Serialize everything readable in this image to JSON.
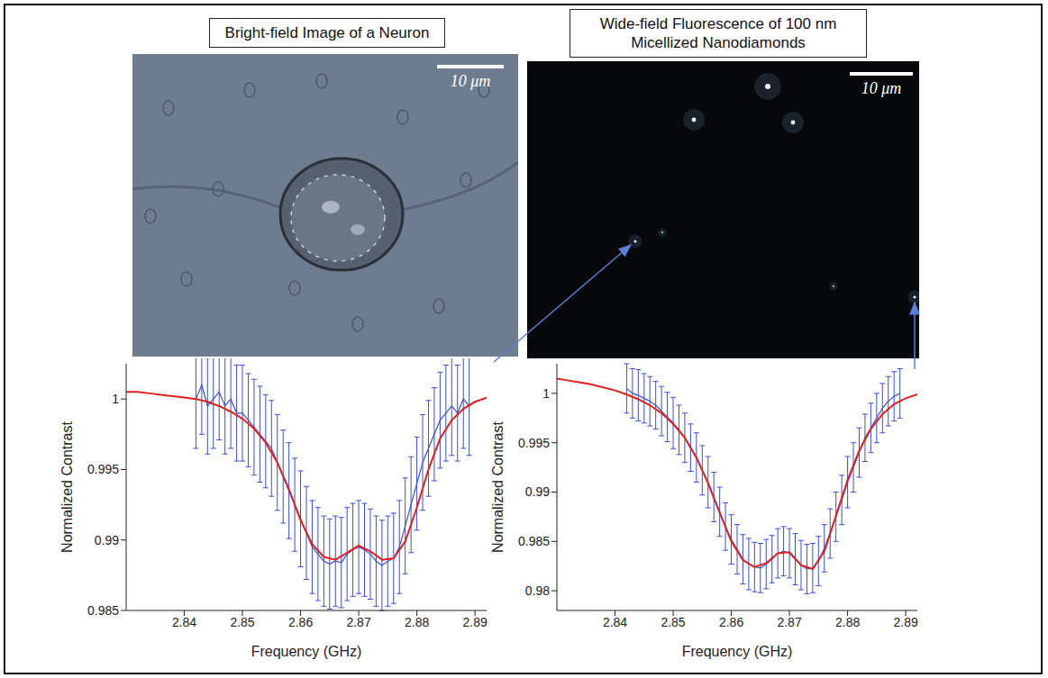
{
  "images": [
    {
      "title": "Bright-field Image of a Neuron",
      "scale_bar": "10 μm"
    },
    {
      "title": "Wide-field Fluorescence of 100 nm Micellized Nanodiamonds",
      "scale_bar": "10 μm"
    }
  ],
  "chart_data": [
    {
      "type": "line",
      "x_label": "Frequency (GHz)",
      "y_label": "Normalized Contrast",
      "xlim": [
        2.83,
        2.892
      ],
      "xticks": [
        2.84,
        2.85,
        2.86,
        2.87,
        2.88,
        2.89
      ],
      "ylim": [
        0.985,
        1.0025
      ],
      "yticks": [
        0.985,
        0.99,
        0.995,
        1
      ],
      "series": [
        {
          "type": "line",
          "color": "#3b4fd0",
          "marker": "none",
          "line_style": "solid",
          "x": [
            2.842,
            2.843,
            2.844,
            2.845,
            2.846,
            2.847,
            2.848,
            2.849,
            2.85,
            2.851,
            2.852,
            2.853,
            2.854,
            2.855,
            2.856,
            2.857,
            2.858,
            2.859,
            2.86,
            2.861,
            2.862,
            2.863,
            2.864,
            2.865,
            2.866,
            2.867,
            2.868,
            2.869,
            2.87,
            2.871,
            2.872,
            2.873,
            2.874,
            2.875,
            2.876,
            2.877,
            2.878,
            2.879,
            2.88,
            2.881,
            2.882,
            2.883,
            2.884,
            2.885,
            2.886,
            2.887,
            2.888,
            2.889
          ],
          "values": [
            1.0,
            1.001,
            0.9995,
            1.0,
            1.0005,
            0.9995,
            1.0,
            0.999,
            0.999,
            0.9985,
            0.998,
            0.9975,
            0.997,
            0.9965,
            0.9955,
            0.9945,
            0.9935,
            0.9925,
            0.9915,
            0.9905,
            0.9895,
            0.989,
            0.9885,
            0.9883,
            0.9885,
            0.9884,
            0.989,
            0.9893,
            0.9895,
            0.9893,
            0.989,
            0.9885,
            0.9882,
            0.9885,
            0.9887,
            0.9895,
            0.991,
            0.9925,
            0.994,
            0.9955,
            0.9965,
            0.9975,
            0.9985,
            0.999,
            0.9995,
            0.999,
            1.0,
            0.9995
          ],
          "errors": [
            0.0035,
            0.0035,
            0.0034,
            0.0035,
            0.0034,
            0.0034,
            0.0035,
            0.0034,
            0.0034,
            0.0033,
            0.0034,
            0.0034,
            0.0033,
            0.0034,
            0.0034,
            0.0033,
            0.0034,
            0.0033,
            0.0034,
            0.0033,
            0.0033,
            0.0033,
            0.0032,
            0.0032,
            0.0032,
            0.0032,
            0.0033,
            0.0033,
            0.0033,
            0.0033,
            0.0032,
            0.0032,
            0.0032,
            0.0032,
            0.0032,
            0.0033,
            0.0034,
            0.0034,
            0.0033,
            0.0034,
            0.0034,
            0.0033,
            0.0034,
            0.0034,
            0.0035,
            0.0034,
            0.0035,
            0.0035
          ]
        },
        {
          "type": "line",
          "color": "#e0201e",
          "marker": "none",
          "line_style": "solid",
          "x": [
            2.83,
            2.832,
            2.834,
            2.836,
            2.838,
            2.84,
            2.842,
            2.844,
            2.846,
            2.848,
            2.85,
            2.852,
            2.854,
            2.856,
            2.858,
            2.86,
            2.862,
            2.864,
            2.866,
            2.868,
            2.87,
            2.872,
            2.874,
            2.876,
            2.878,
            2.88,
            2.882,
            2.884,
            2.886,
            2.888,
            2.89,
            2.892
          ],
          "values": [
            1.0005,
            1.0005,
            1.0004,
            1.0003,
            1.0002,
            1.0001,
            1.0,
            0.9998,
            0.9995,
            0.9991,
            0.9986,
            0.9979,
            0.9969,
            0.9955,
            0.9936,
            0.9914,
            0.9897,
            0.9888,
            0.9886,
            0.9891,
            0.9896,
            0.9892,
            0.9886,
            0.9887,
            0.9899,
            0.9923,
            0.995,
            0.9972,
            0.9985,
            0.9993,
            0.9998,
            1.0001
          ]
        }
      ]
    },
    {
      "type": "line",
      "x_label": "Frequency (GHz)",
      "y_label": "Normalized Contrast",
      "xlim": [
        2.83,
        2.892
      ],
      "xticks": [
        2.84,
        2.85,
        2.86,
        2.87,
        2.88,
        2.89
      ],
      "ylim": [
        0.978,
        1.003
      ],
      "yticks": [
        0.98,
        0.985,
        0.99,
        0.995,
        1
      ],
      "series": [
        {
          "type": "line",
          "color": "#3b4fd0",
          "marker": "none",
          "line_style": "solid",
          "x": [
            2.842,
            2.843,
            2.844,
            2.845,
            2.846,
            2.847,
            2.848,
            2.849,
            2.85,
            2.851,
            2.852,
            2.853,
            2.854,
            2.855,
            2.856,
            2.857,
            2.858,
            2.859,
            2.86,
            2.861,
            2.862,
            2.863,
            2.864,
            2.865,
            2.866,
            2.867,
            2.868,
            2.869,
            2.87,
            2.871,
            2.872,
            2.873,
            2.874,
            2.875,
            2.876,
            2.877,
            2.878,
            2.879,
            2.88,
            2.881,
            2.882,
            2.883,
            2.884,
            2.885,
            2.886,
            2.887,
            2.888,
            2.889
          ],
          "values": [
            1.0005,
            1.0,
            0.9998,
            0.9995,
            0.9992,
            0.9988,
            0.9982,
            0.9976,
            0.997,
            0.9963,
            0.9955,
            0.9945,
            0.9935,
            0.9922,
            0.991,
            0.9895,
            0.988,
            0.9865,
            0.9852,
            0.9842,
            0.9832,
            0.9827,
            0.9824,
            0.9823,
            0.9827,
            0.9832,
            0.9838,
            0.984,
            0.9838,
            0.9832,
            0.9826,
            0.9822,
            0.9823,
            0.983,
            0.9843,
            0.9858,
            0.9875,
            0.9892,
            0.991,
            0.9925,
            0.994,
            0.9955,
            0.9965,
            0.9975,
            0.9985,
            0.9992,
            0.9997,
            1.0
          ],
          "errors": [
            0.0025,
            0.0025,
            0.0026,
            0.0025,
            0.0025,
            0.0024,
            0.0025,
            0.0025,
            0.0026,
            0.0025,
            0.0025,
            0.0024,
            0.0025,
            0.0025,
            0.0026,
            0.0025,
            0.0025,
            0.0024,
            0.0025,
            0.0025,
            0.0025,
            0.0026,
            0.0025,
            0.0025,
            0.0025,
            0.0024,
            0.0025,
            0.0025,
            0.0025,
            0.0026,
            0.0025,
            0.0025,
            0.0025,
            0.0025,
            0.0024,
            0.0025,
            0.0025,
            0.0025,
            0.0026,
            0.0025,
            0.0025,
            0.0024,
            0.0025,
            0.0025,
            0.0025,
            0.0025,
            0.0025,
            0.0025
          ]
        },
        {
          "type": "line",
          "color": "#e0201e",
          "marker": "none",
          "line_style": "solid",
          "x": [
            2.83,
            2.832,
            2.834,
            2.836,
            2.838,
            2.84,
            2.842,
            2.844,
            2.846,
            2.848,
            2.85,
            2.852,
            2.854,
            2.856,
            2.858,
            2.86,
            2.862,
            2.864,
            2.866,
            2.868,
            2.87,
            2.872,
            2.874,
            2.876,
            2.878,
            2.88,
            2.882,
            2.884,
            2.886,
            2.888,
            2.89,
            2.892
          ],
          "values": [
            1.0015,
            1.0013,
            1.0011,
            1.0009,
            1.0006,
            1.0003,
            0.9999,
            0.9994,
            0.9988,
            0.998,
            0.9969,
            0.9955,
            0.9935,
            0.9909,
            0.9879,
            0.985,
            0.9831,
            0.9824,
            0.9828,
            0.9838,
            0.9839,
            0.9826,
            0.9822,
            0.984,
            0.9876,
            0.9912,
            0.9942,
            0.9964,
            0.9979,
            0.9989,
            0.9995,
            0.9999
          ]
        }
      ]
    }
  ]
}
